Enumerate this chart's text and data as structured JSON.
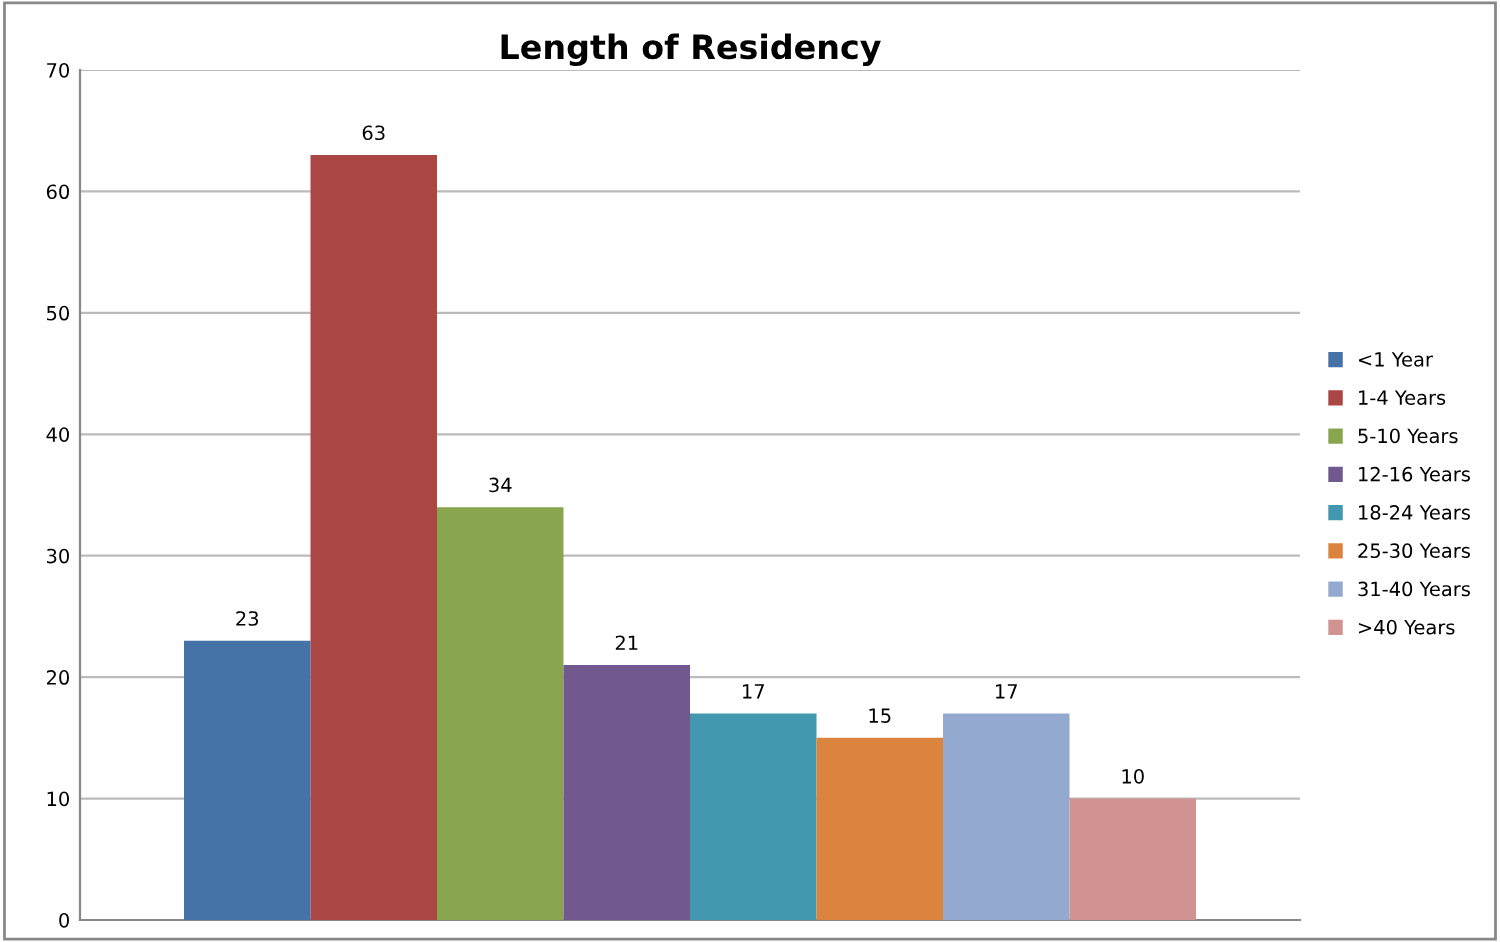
{
  "chart_data": {
    "type": "bar",
    "title": "Length of Residency",
    "categories": [
      null
    ],
    "series": [
      {
        "name": "<1 Year",
        "color": "#4572a7",
        "values": [
          23
        ]
      },
      {
        "name": "1-4 Years",
        "color": "#aa4643",
        "values": [
          63
        ]
      },
      {
        "name": "5-10 Years",
        "color": "#89a54e",
        "values": [
          34
        ]
      },
      {
        "name": "12-16 Years",
        "color": "#71588f",
        "values": [
          21
        ]
      },
      {
        "name": "18-24 Years",
        "color": "#4198af",
        "values": [
          17
        ]
      },
      {
        "name": "25-30 Years",
        "color": "#db843d",
        "values": [
          15
        ]
      },
      {
        "name": "31-40 Years",
        "color": "#93a9cf",
        "values": [
          17
        ]
      },
      {
        "name": ">40 Years",
        "color": "#d19392",
        "values": [
          10
        ]
      }
    ],
    "ylim": [
      0,
      70
    ],
    "yticks": [
      0,
      10,
      20,
      30,
      40,
      50,
      60,
      70
    ],
    "grid": "y",
    "legend": "right",
    "data_labels": true
  }
}
